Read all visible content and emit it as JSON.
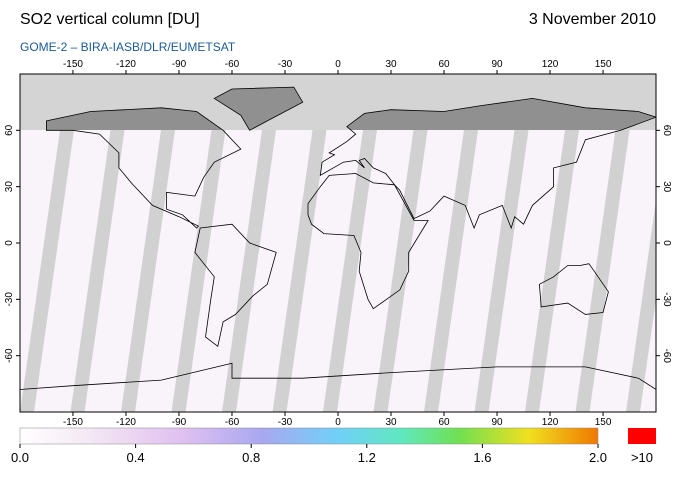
{
  "header": {
    "title": "SO2 vertical column [DU]",
    "date": "3 November 2010",
    "subtitle": "GOME-2  –  BIRA-IASB/DLR/EUMETSAT"
  },
  "map": {
    "lon_ticks": [
      -150,
      -120,
      -90,
      -60,
      -30,
      0,
      30,
      60,
      90,
      120,
      150
    ],
    "lat_ticks": [
      60,
      30,
      0,
      -30,
      -60
    ]
  },
  "colorbar": {
    "ticks": [
      {
        "value": 0,
        "label": "0.0"
      },
      0.4,
      0.8,
      1.2,
      1.6,
      {
        "value": 2,
        "label": "2.0"
      }
    ],
    "over_label": ">10"
  }
}
